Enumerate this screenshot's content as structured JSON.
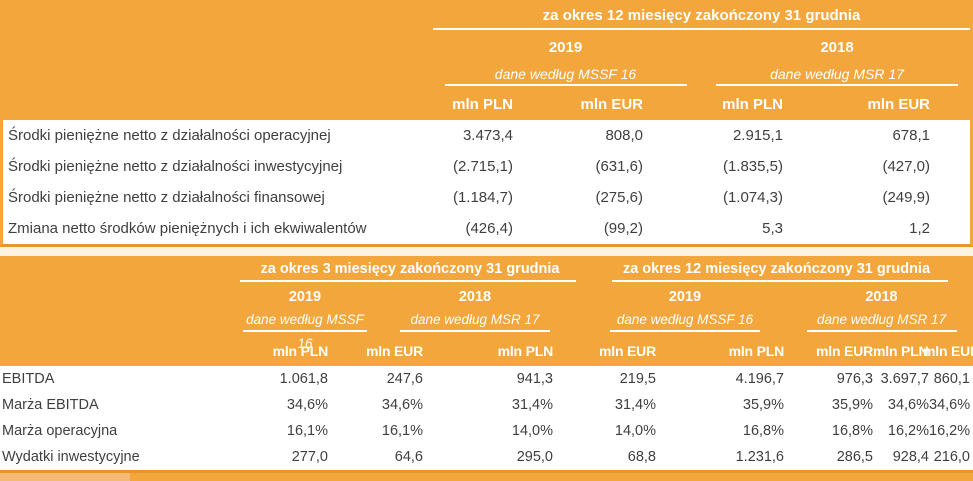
{
  "colors": {
    "band_orange": "#F2A63B",
    "border_orange": "#E8962B",
    "gap_cream": "#FCF3E3",
    "bottom_light_orange": "#F2BA74",
    "body_text": "#3f3f3f",
    "header_text": "#ffffff"
  },
  "table1": {
    "period_header": "za okres 12 miesięcy zakończony 31 grudnia",
    "years": [
      "2019",
      "2018"
    ],
    "standards": [
      "dane według MSSF 16",
      "dane według MSR 17"
    ],
    "unit_headers": [
      "mln PLN",
      "mln EUR",
      "mln PLN",
      "mln EUR"
    ],
    "rows": [
      {
        "label": "Środki pieniężne netto z działalności operacyjnej",
        "values": [
          "3.473,4",
          "808,0",
          "2.915,1",
          "678,1"
        ]
      },
      {
        "label": "Środki pieniężne netto z działalności inwestycyjnej",
        "values": [
          "(2.715,1)",
          "(631,6)",
          "(1.835,5)",
          "(427,0)"
        ]
      },
      {
        "label": "Środki pieniężne netto z działalności finansowej",
        "values": [
          "(1.184,7)",
          "(275,6)",
          "(1.074,3)",
          "(249,9)"
        ]
      },
      {
        "label": "Zmiana netto środków pieniężnych i ich ekwiwalentów",
        "values": [
          "(426,4)",
          "(99,2)",
          "5,3",
          "1,2"
        ]
      }
    ]
  },
  "table2": {
    "period_headers": [
      "za okres 3 miesięcy zakończony 31 grudnia",
      "za okres 12 miesięcy zakończony 31 grudnia"
    ],
    "years": [
      "2019",
      "2018",
      "2019",
      "2018"
    ],
    "standards": [
      "dane według MSSF 16",
      "dane według MSR 17",
      "dane według MSSF 16",
      "dane według MSR 17"
    ],
    "unit_headers": [
      "mln PLN",
      "mln EUR",
      "mln PLN",
      "mln EUR",
      "mln PLN",
      "mln EUR",
      "mln PLN",
      "mln EUR"
    ],
    "rows": [
      {
        "label": "EBITDA",
        "values": [
          "1.061,8",
          "247,6",
          "941,3",
          "219,5",
          "4.196,7",
          "976,3",
          "3.697,7",
          "860,1"
        ]
      },
      {
        "label": "Marża EBITDA",
        "values": [
          "34,6%",
          "34,6%",
          "31,4%",
          "31,4%",
          "35,9%",
          "35,9%",
          "34,6%",
          "34,6%"
        ]
      },
      {
        "label": "Marża operacyjna",
        "values": [
          "16,1%",
          "16,1%",
          "14,0%",
          "14,0%",
          "16,8%",
          "16,8%",
          "16,2%",
          "16,2%"
        ]
      },
      {
        "label": "Wydatki inwestycyjne",
        "values": [
          "277,0",
          "64,6",
          "295,0",
          "68,8",
          "1.231,6",
          "286,5",
          "928,4",
          "216,0"
        ]
      }
    ]
  }
}
